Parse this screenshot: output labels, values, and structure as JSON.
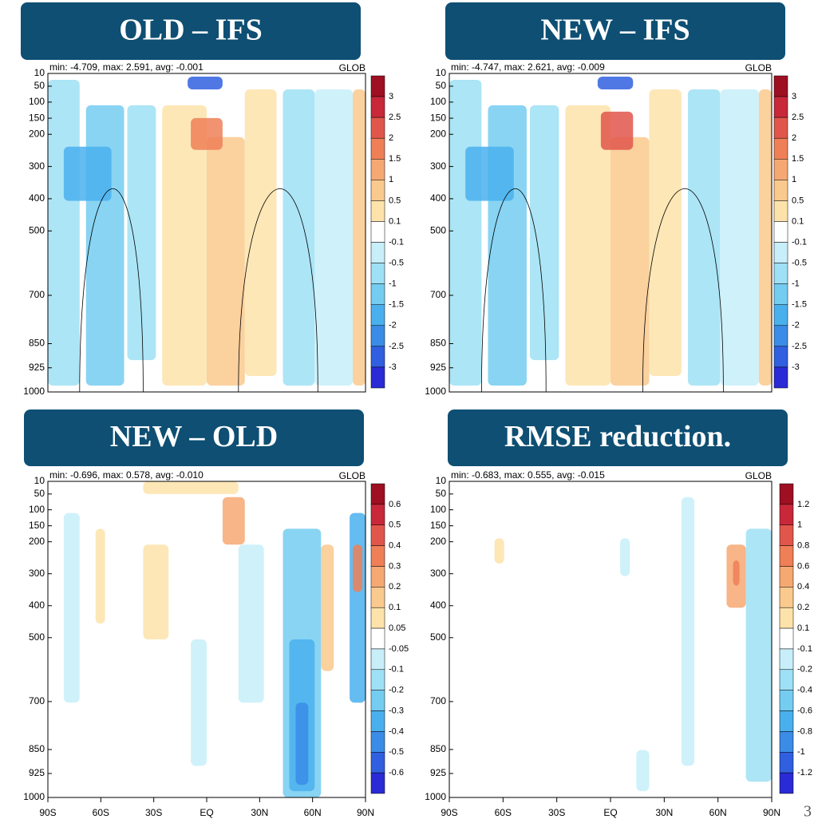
{
  "panels": [
    {
      "banner": "OLD – IFS",
      "stats": "min: -4.709, max: 2.591, avg: -0.001",
      "region": "GLOB",
      "ylim": [
        10,
        1000
      ],
      "yticks": [
        10,
        50,
        100,
        150,
        200,
        300,
        400,
        500,
        700,
        850,
        925,
        1000
      ],
      "colorbar": [
        3,
        2.5,
        2,
        1.5,
        1,
        0.5,
        0.1,
        -0.1,
        -0.5,
        -1,
        -1.5,
        -2,
        -2.5,
        -3
      ]
    },
    {
      "banner": "NEW – IFS",
      "stats": "min: -4.747, max: 2.621, avg: -0.009",
      "region": "GLOB",
      "ylim": [
        10,
        1000
      ],
      "yticks": [
        10,
        50,
        100,
        150,
        200,
        300,
        400,
        500,
        700,
        850,
        925,
        1000
      ],
      "colorbar": [
        3,
        2.5,
        2,
        1.5,
        1,
        0.5,
        0.1,
        -0.1,
        -0.5,
        -1,
        -1.5,
        -2,
        -2.5,
        -3
      ]
    },
    {
      "banner": "NEW – OLD",
      "stats": "min: -0.696, max: 0.578, avg: -0.010",
      "region": "GLOB",
      "ylim": [
        10,
        1000
      ],
      "yticks": [
        10,
        50,
        100,
        150,
        200,
        300,
        400,
        500,
        700,
        850,
        925,
        1000
      ],
      "xticks": [
        "90S",
        "60S",
        "30S",
        "EQ",
        "30N",
        "60N",
        "90N"
      ],
      "colorbar": [
        0.6,
        0.5,
        0.4,
        0.3,
        0.2,
        0.1,
        0.05,
        -0.05,
        -0.1,
        -0.2,
        -0.3,
        -0.4,
        -0.5,
        -0.6
      ]
    },
    {
      "banner": "RMSE reduction.",
      "stats": "min: -0.683, max: 0.555, avg: -0.015",
      "region": "GLOB",
      "ylim": [
        10,
        1000
      ],
      "yticks": [
        10,
        50,
        100,
        150,
        200,
        300,
        400,
        500,
        700,
        850,
        925,
        1000
      ],
      "xticks": [
        "90S",
        "60S",
        "30S",
        "EQ",
        "30N",
        "60N",
        "90N"
      ],
      "colorbar": [
        1.2,
        1,
        0.8,
        0.6,
        0.4,
        0.2,
        0.1,
        -0.1,
        -0.2,
        -0.4,
        -0.6,
        -0.8,
        -1,
        -1.2
      ]
    }
  ],
  "page_number": "3"
}
